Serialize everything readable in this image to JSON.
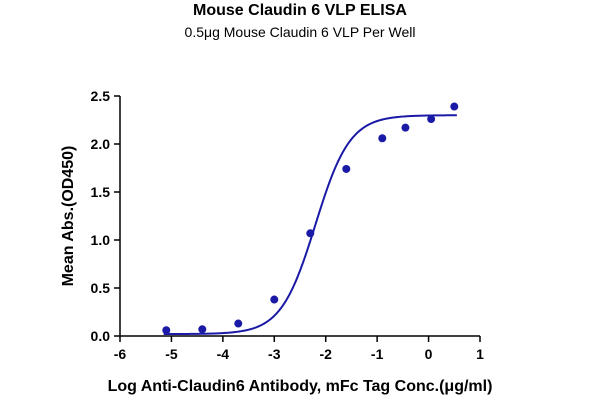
{
  "chart_data": {
    "type": "scatter",
    "title": "Mouse Claudin 6 VLP ELISA",
    "subtitle": "0.5μg Mouse Claudin 6 VLP Per Well",
    "xlabel": "Log Anti-Claudin6 Antibody, mFc Tag Conc.(μg/ml)",
    "ylabel": "Mean Abs.(OD450)",
    "xlim": [
      -6,
      1
    ],
    "ylim": [
      0,
      2.5
    ],
    "xticks": [
      -6,
      -5,
      -4,
      -3,
      -2,
      -1,
      0,
      1
    ],
    "yticks": [
      0.0,
      0.5,
      1.0,
      1.5,
      2.0,
      2.5
    ],
    "xtick_labels": [
      "-6",
      "-5",
      "-4",
      "-3",
      "-2",
      "-1",
      "0",
      "1"
    ],
    "ytick_labels": [
      "0.0",
      "0.5",
      "1.0",
      "1.5",
      "2.0",
      "2.5"
    ],
    "grid": false,
    "series": [
      {
        "kind": "points",
        "color": "#1a1aa6",
        "x": [
          -5.1,
          -4.4,
          -3.7,
          -3.0,
          -2.3,
          -1.6,
          -0.9,
          -0.45,
          0.05,
          0.5
        ],
        "y": [
          0.06,
          0.07,
          0.13,
          0.38,
          1.07,
          1.74,
          2.06,
          2.17,
          2.26,
          2.39
        ]
      },
      {
        "kind": "fit-curve",
        "model": "4PL",
        "color": "#1a1aa6",
        "bottom": 0.02,
        "top": 2.3,
        "logEC50": -2.2,
        "hill": 1.3,
        "x_range": [
          -5.15,
          0.55
        ]
      }
    ]
  }
}
